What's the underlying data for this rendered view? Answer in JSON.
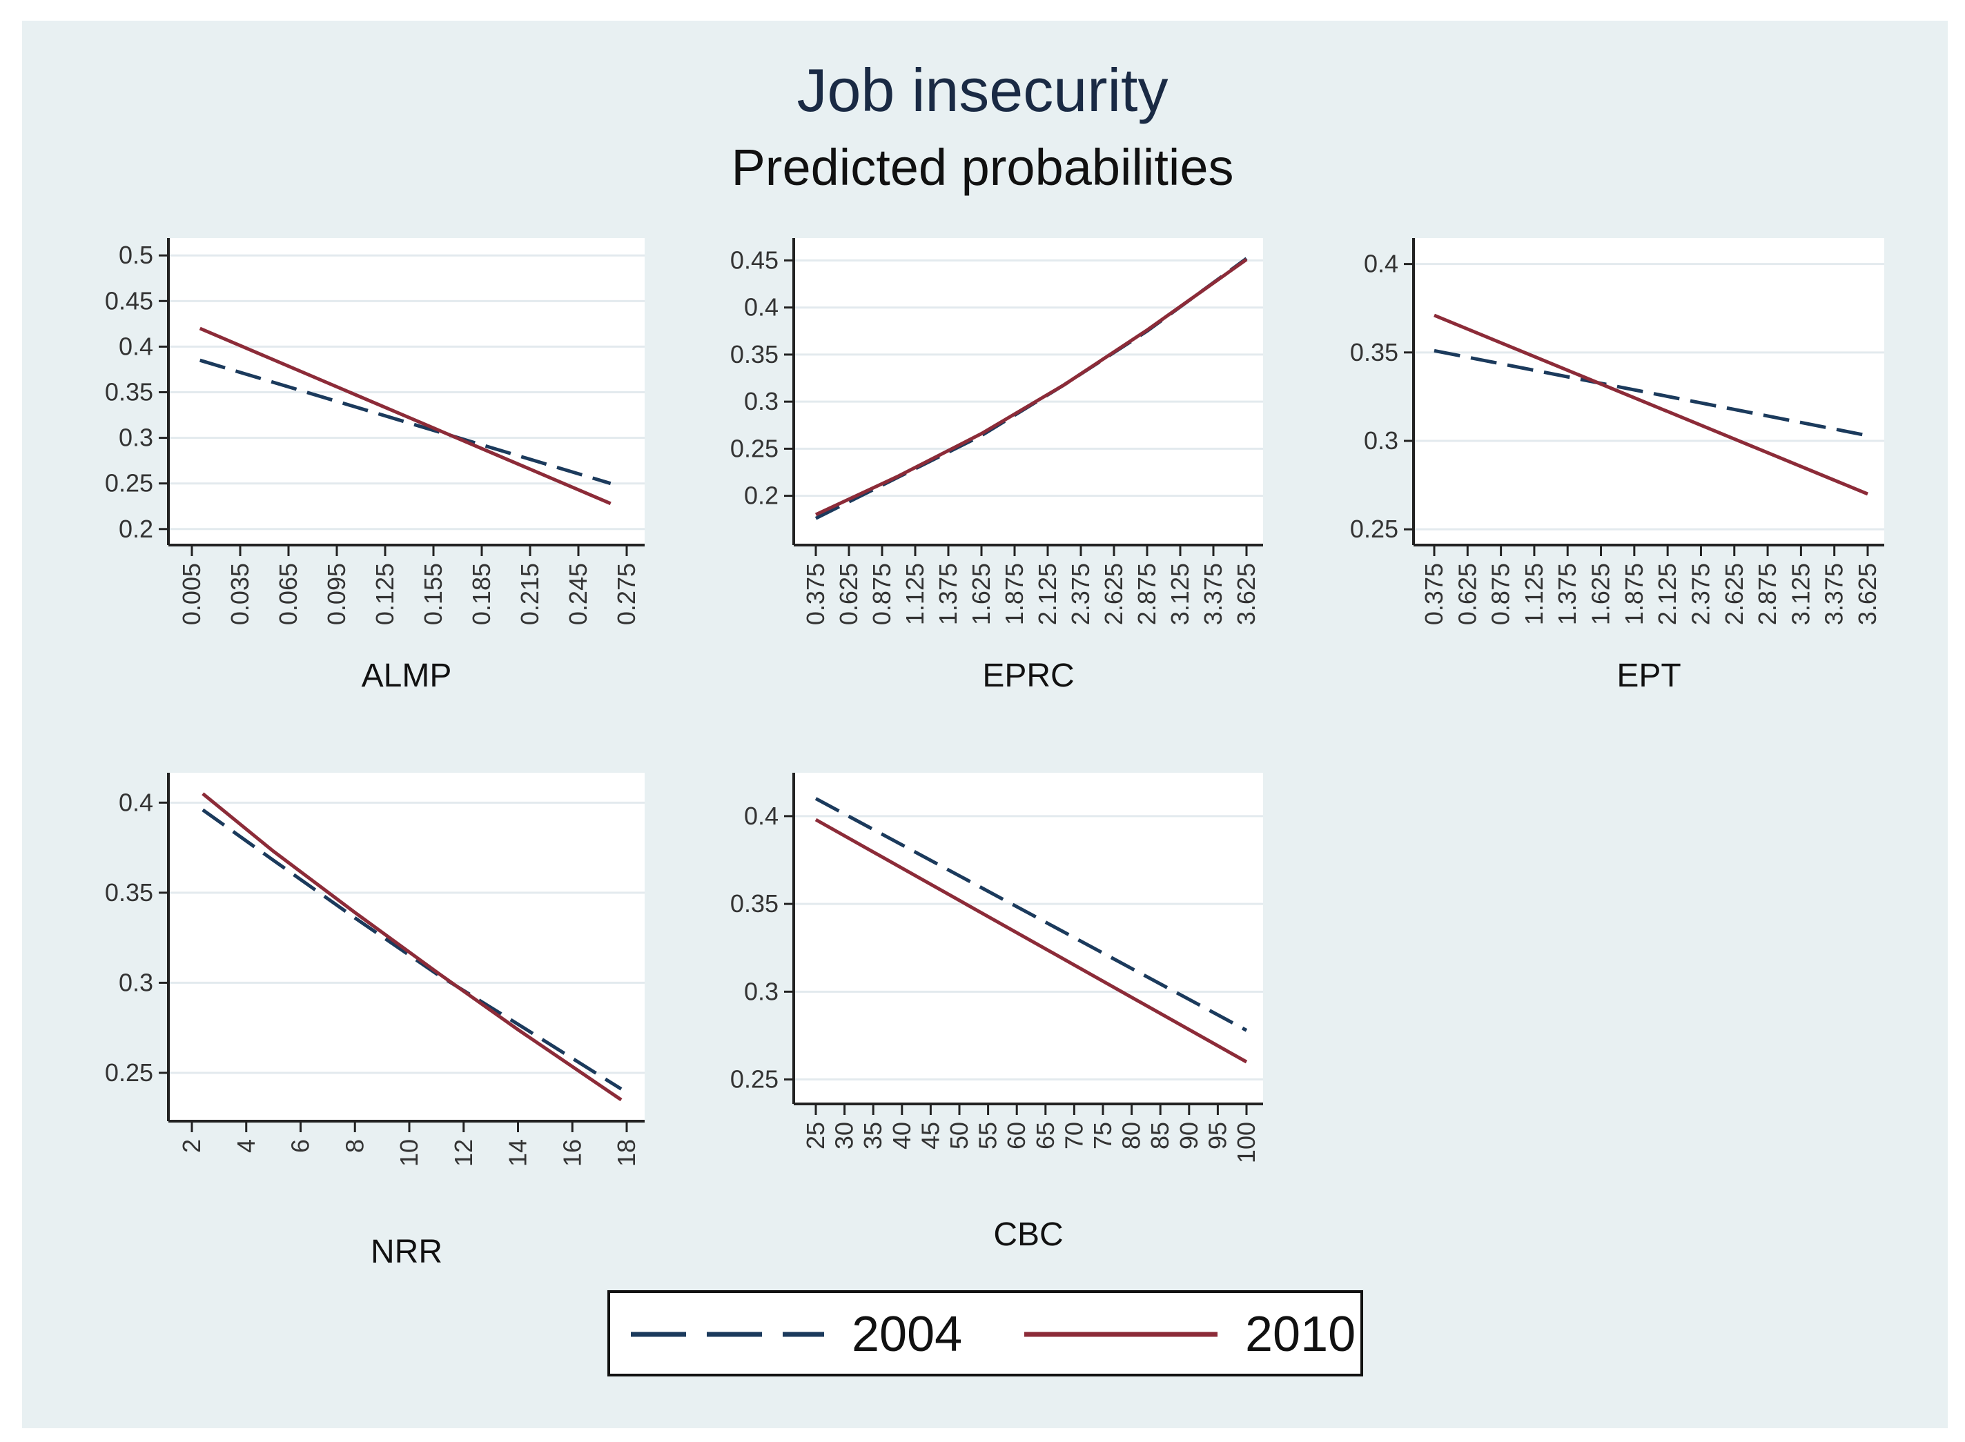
{
  "chart_data": {
    "type": "line",
    "title": "Job insecurity",
    "subtitle": "Predicted probabilities",
    "legend": {
      "position": "bottom",
      "entries": [
        {
          "name": "2004",
          "style": "dashed",
          "color": "#1b3a5c"
        },
        {
          "name": "2010",
          "style": "solid",
          "color": "#8c2b38"
        }
      ]
    },
    "panels": [
      {
        "xlabel": "ALMP",
        "x_ticks": [
          "0.005",
          "0.035",
          "0.065",
          "0.095",
          "0.125",
          "0.155",
          "0.185",
          "0.215",
          "0.245",
          "0.275"
        ],
        "x_range": [
          0.005,
          0.275
        ],
        "y_ticks": [
          "0.5",
          "0.45",
          "0.4",
          "0.35",
          "0.3",
          "0.25",
          "0.2"
        ],
        "y_range": [
          0.19,
          0.51
        ],
        "series": [
          {
            "name": "2004",
            "x": [
              0.01,
              0.265
            ],
            "y": [
              0.385,
              0.25
            ]
          },
          {
            "name": "2010",
            "x": [
              0.01,
              0.265
            ],
            "y": [
              0.42,
              0.228
            ]
          }
        ]
      },
      {
        "xlabel": "EPRC",
        "x_ticks": [
          "0.375",
          "0.625",
          "0.875",
          "1.125",
          "1.375",
          "1.625",
          "1.875",
          "2.125",
          "2.375",
          "2.625",
          "2.875",
          "3.125",
          "3.375",
          "3.625"
        ],
        "x_range": [
          0.375,
          3.625
        ],
        "y_ticks": [
          "0.45",
          "0.4",
          "0.35",
          "0.3",
          "0.25",
          "0.2"
        ],
        "y_range": [
          0.155,
          0.465
        ],
        "series": [
          {
            "name": "2004",
            "x": [
              0.375,
              1.0,
              1.625,
              2.25,
              2.875,
              3.625
            ],
            "y": [
              0.176,
              0.22,
              0.264,
              0.318,
              0.375,
              0.452
            ]
          },
          {
            "name": "2010",
            "x": [
              0.375,
              1.0,
              1.625,
              2.25,
              2.875,
              3.625
            ],
            "y": [
              0.18,
              0.221,
              0.266,
              0.318,
              0.376,
              0.451
            ]
          }
        ]
      },
      {
        "xlabel": "EPT",
        "x_ticks": [
          "0.375",
          "0.625",
          "0.875",
          "1.125",
          "1.375",
          "1.625",
          "1.875",
          "2.125",
          "2.375",
          "2.625",
          "2.875",
          "3.125",
          "3.375",
          "3.625"
        ],
        "x_range": [
          0.375,
          3.625
        ],
        "y_ticks": [
          "0.4",
          "0.35",
          "0.3",
          "0.25"
        ],
        "y_range": [
          0.245,
          0.41
        ],
        "series": [
          {
            "name": "2004",
            "x": [
              0.375,
              3.625
            ],
            "y": [
              0.351,
              0.303
            ]
          },
          {
            "name": "2010",
            "x": [
              0.375,
              3.625
            ],
            "y": [
              0.371,
              0.27
            ]
          }
        ]
      },
      {
        "xlabel": "NRR",
        "x_ticks": [
          "2",
          "4",
          "6",
          "8",
          "10",
          "12",
          "14",
          "16",
          "18"
        ],
        "x_range": [
          2,
          18
        ],
        "y_ticks": [
          "0.4",
          "0.35",
          "0.3",
          "0.25"
        ],
        "y_range": [
          0.227,
          0.412
        ],
        "series": [
          {
            "name": "2004",
            "x": [
              2.4,
              5,
              8,
              11,
              14,
              17.8
            ],
            "y": [
              0.396,
              0.368,
              0.336,
              0.305,
              0.277,
              0.241
            ]
          },
          {
            "name": "2010",
            "x": [
              2.4,
              5,
              8,
              11,
              14,
              17.8
            ],
            "y": [
              0.405,
              0.373,
              0.339,
              0.306,
              0.274,
              0.235
            ]
          }
        ]
      },
      {
        "xlabel": "CBC",
        "x_ticks": [
          "25",
          "30",
          "35",
          "40",
          "45",
          "50",
          "55",
          "60",
          "65",
          "70",
          "75",
          "80",
          "85",
          "90",
          "95",
          "100"
        ],
        "x_range": [
          25,
          100
        ],
        "y_ticks": [
          "0.4",
          "0.35",
          "0.3",
          "0.25"
        ],
        "y_range": [
          0.24,
          0.42
        ],
        "series": [
          {
            "name": "2004",
            "x": [
              25,
              100
            ],
            "y": [
              0.41,
              0.278
            ]
          },
          {
            "name": "2010",
            "x": [
              25,
              100
            ],
            "y": [
              0.398,
              0.26
            ]
          }
        ]
      }
    ]
  }
}
